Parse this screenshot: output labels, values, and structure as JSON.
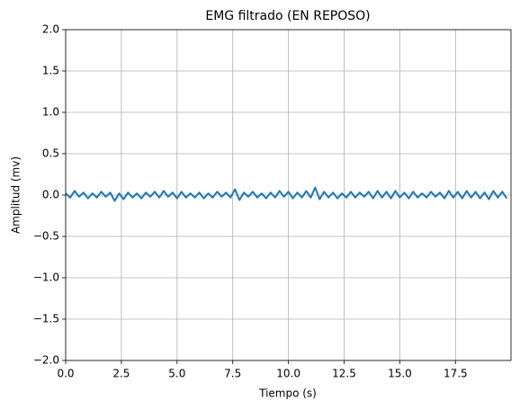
{
  "chart_data": {
    "type": "line",
    "title": "EMG filtrado (EN REPOSO)",
    "xlabel": "Tiempo (s)",
    "ylabel": "Amplitud (mv)",
    "xlim": [
      0,
      19.99
    ],
    "ylim": [
      -2,
      2
    ],
    "xticks": [
      {
        "value": 0,
        "label": "0.0"
      },
      {
        "value": 2.5,
        "label": "2.5"
      },
      {
        "value": 5,
        "label": "5.0"
      },
      {
        "value": 7.5,
        "label": "7.5"
      },
      {
        "value": 10,
        "label": "10.0"
      },
      {
        "value": 12.5,
        "label": "12.5"
      },
      {
        "value": 15,
        "label": "15.0"
      },
      {
        "value": 17.5,
        "label": "17.5"
      }
    ],
    "yticks": [
      {
        "value": -2,
        "label": "−2.0"
      },
      {
        "value": -1.5,
        "label": "−1.5"
      },
      {
        "value": -1,
        "label": "−1.0"
      },
      {
        "value": -0.5,
        "label": "−0.5"
      },
      {
        "value": 0,
        "label": "0.0"
      },
      {
        "value": 0.5,
        "label": "0.5"
      },
      {
        "value": 1,
        "label": "1.0"
      },
      {
        "value": 1.5,
        "label": "1.5"
      },
      {
        "value": 2,
        "label": "2.0"
      }
    ],
    "grid": true,
    "x": [
      0,
      0.2,
      0.4,
      0.6,
      0.8,
      1,
      1.2,
      1.4,
      1.6,
      1.8,
      2,
      2.2,
      2.4,
      2.6,
      2.8,
      3,
      3.2,
      3.4,
      3.6,
      3.8,
      4,
      4.2,
      4.4,
      4.6,
      4.8,
      5,
      5.2,
      5.4,
      5.6,
      5.8,
      6,
      6.2,
      6.4,
      6.6,
      6.8,
      7,
      7.2,
      7.4,
      7.6,
      7.8,
      8,
      8.2,
      8.4,
      8.6,
      8.8,
      9,
      9.2,
      9.4,
      9.6,
      9.8,
      10,
      10.2,
      10.4,
      10.6,
      10.8,
      11,
      11.2,
      11.4,
      11.6,
      11.8,
      12,
      12.2,
      12.4,
      12.6,
      12.8,
      13,
      13.2,
      13.4,
      13.6,
      13.8,
      14,
      14.2,
      14.4,
      14.6,
      14.8,
      15,
      15.2,
      15.4,
      15.6,
      15.8,
      16,
      16.2,
      16.4,
      16.6,
      16.8,
      17,
      17.2,
      17.4,
      17.6,
      17.8,
      18,
      18.2,
      18.4,
      18.6,
      18.8,
      19,
      19.2,
      19.4,
      19.6,
      19.8
    ],
    "series": [
      {
        "name": "EMG",
        "color": "#1f77b4",
        "values": [
          0.02,
          -0.03,
          0.05,
          -0.02,
          0.03,
          -0.04,
          0.02,
          -0.03,
          0.04,
          -0.02,
          0.03,
          -0.07,
          0.02,
          -0.05,
          0.03,
          -0.03,
          0.02,
          -0.04,
          0.03,
          -0.02,
          0.04,
          -0.03,
          0.05,
          -0.02,
          0.03,
          -0.04,
          0.04,
          -0.03,
          0.02,
          -0.03,
          0.03,
          -0.04,
          0.02,
          -0.03,
          0.04,
          -0.02,
          0.03,
          -0.03,
          0.07,
          -0.06,
          0.03,
          -0.02,
          0.04,
          -0.03,
          0.02,
          -0.04,
          0.03,
          -0.03,
          0.05,
          -0.02,
          0.04,
          -0.04,
          0.03,
          -0.03,
          0.05,
          -0.03,
          0.09,
          -0.05,
          0.04,
          -0.03,
          0.03,
          -0.04,
          0.02,
          -0.03,
          0.04,
          -0.03,
          0.03,
          -0.02,
          0.04,
          -0.04,
          0.05,
          -0.03,
          0.04,
          -0.04,
          0.05,
          -0.03,
          0.03,
          -0.04,
          0.04,
          -0.03,
          0.02,
          -0.03,
          0.04,
          -0.02,
          0.03,
          -0.04,
          0.05,
          -0.03,
          0.04,
          -0.04,
          0.05,
          -0.03,
          0.04,
          -0.04,
          0.03,
          -0.05,
          0.05,
          -0.03,
          0.04,
          -0.04
        ]
      }
    ]
  }
}
